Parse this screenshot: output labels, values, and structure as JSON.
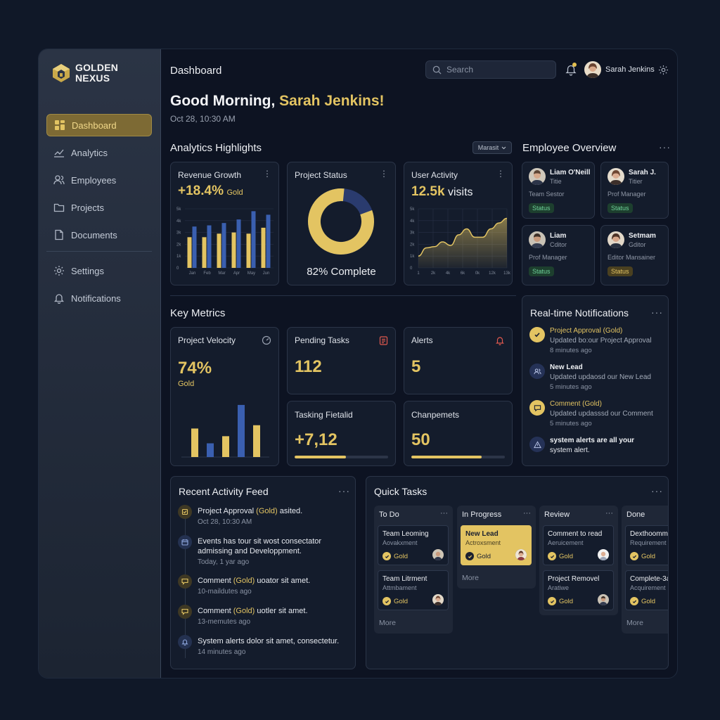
{
  "brand": {
    "line1": "GOLDEN",
    "line2": "NEXUS"
  },
  "nav": [
    {
      "label": "Dashboard",
      "icon": "grid-icon",
      "active": true
    },
    {
      "label": "Analytics",
      "icon": "chart-line-icon"
    },
    {
      "label": "Employees",
      "icon": "users-icon"
    },
    {
      "label": "Projects",
      "icon": "folder-icon"
    },
    {
      "label": "Documents",
      "icon": "document-icon"
    },
    {
      "label": "Settings",
      "icon": "gear-icon"
    },
    {
      "label": "Notifications",
      "icon": "bell-icon"
    }
  ],
  "topbar": {
    "title": "Dashboard",
    "search_placeholder": "Search",
    "user_name": "Sarah Jenkins"
  },
  "greeting": {
    "prefix": "Good Morning, ",
    "name": "Sarah Jenkins!",
    "date": "Oct 28, 10:30 AM"
  },
  "analytics": {
    "title": "Analytics Highlights",
    "select_label": "Marasit",
    "revenue": {
      "label": "Revenue Growth",
      "value": "+18.4%",
      "suffix": "Gold",
      "chart_data": {
        "type": "bar",
        "categories": [
          "Jan",
          "Feb",
          "Mar",
          "Apr",
          "May",
          "Jun"
        ],
        "y_ticks": [
          "0",
          "1k",
          "2k",
          "3k",
          "4k",
          "5k"
        ],
        "ylim": [
          0,
          5
        ],
        "series": [
          {
            "values": [
              2.6,
              2.6,
              2.9,
              3.0,
              2.9,
              3.4
            ],
            "color": "#e3c462"
          },
          {
            "values": [
              3.5,
              3.6,
              3.8,
              4.1,
              4.8,
              4.5
            ],
            "color": "#3a5fb0"
          }
        ]
      }
    },
    "project_status": {
      "label": "Project Status",
      "caption": "82% Complete",
      "percent": 82
    },
    "user_activity": {
      "label": "User Activity",
      "value": "12.5k",
      "unit": "visits",
      "chart_data": {
        "type": "area",
        "x_ticks": [
          "1",
          "2k",
          "4k",
          "6k",
          "0k",
          "12k",
          "13k"
        ],
        "y_ticks": [
          "0",
          "1k",
          "2k",
          "3k",
          "4k",
          "5k"
        ],
        "ylim": [
          0,
          5
        ],
        "values": [
          1.0,
          1.7,
          1.8,
          2.2,
          1.9,
          2.8,
          3.3,
          2.6,
          2.6,
          3.3,
          3.8,
          4.2
        ]
      }
    }
  },
  "employees": {
    "title": "Employee Overview",
    "items": [
      {
        "name": "Liam O'Neill",
        "sub": "Titie",
        "role": "Team Sestor",
        "status": "Status",
        "status_tone": "green"
      },
      {
        "name": "Sarah J.",
        "sub": "Titier",
        "role": "Prof Manager",
        "status": "Status",
        "status_tone": "green"
      },
      {
        "name": "Liam",
        "sub": "Cditor",
        "role": "Prof Manager",
        "status": "Status",
        "status_tone": "green"
      },
      {
        "name": "Setmam",
        "sub": "Gditor",
        "role": "Editor Mansainer",
        "status": "Status",
        "status_tone": "gold"
      }
    ]
  },
  "key_metrics": {
    "title": "Key Metrics",
    "velocity": {
      "label": "Project Velocity",
      "value": "74%",
      "suffix": "Gold",
      "chart_data": {
        "type": "bar",
        "values": [
          0.52,
          0.25,
          0.38,
          0.95,
          0.58
        ],
        "colors": [
          "#e3c462",
          "#3a5fb0",
          "#e3c462",
          "#3a5fb0",
          "#e3c462"
        ]
      }
    },
    "pending": {
      "label": "Pending Tasks",
      "value": "112"
    },
    "alerts": {
      "label": "Alerts",
      "value": "5"
    },
    "tasking": {
      "label": "Tasking Fietalid",
      "value": "+7,12",
      "progress": 0.55
    },
    "changes": {
      "label": "Chanpemets",
      "value": "50",
      "progress": 0.75
    }
  },
  "notifications": {
    "title": "Real-time Notifications",
    "items": [
      {
        "title": "Project Approval (Gold)",
        "desc": "Updated bo:our Project Approval",
        "time": "8 minutes ago",
        "tone": "gold"
      },
      {
        "title": "New Lead",
        "desc": "Updated updaosd our New Lead",
        "time": "5 minutes ago",
        "tone": "blue"
      },
      {
        "title": "Comment (Gold)",
        "desc": "Updated updasssd our Comment",
        "time": "5 minutes ago",
        "tone": "gold"
      },
      {
        "title": "system alerts are all your",
        "desc": "system alert.",
        "time": "",
        "tone": "blue"
      }
    ]
  },
  "activity": {
    "title": "Recent Activity Feed",
    "items": [
      {
        "pre": "Project Approval ",
        "gold": "(Gold)",
        "post": " asited.",
        "line2": "",
        "time": "Oct 28, 10:30 AM"
      },
      {
        "pre": "Events has tour sit wost consectator",
        "gold": "",
        "post": "",
        "line2": "admissing and Developpment.",
        "time": "Today, 1 yar ago"
      },
      {
        "pre": "Comment ",
        "gold": "(Gold)",
        "post": " uoator sit amet.",
        "line2": "",
        "time": "10-maildutes ago"
      },
      {
        "pre": "Comment ",
        "gold": "(Gold)",
        "post": " uotler sit amet.",
        "line2": "",
        "time": "13-memutes ago"
      },
      {
        "pre": "System alerts dolor sit amet, consectetur.",
        "gold": "",
        "post": "",
        "line2": "",
        "time": "14 minutes ago"
      }
    ]
  },
  "quick_tasks": {
    "title": "Quick Tasks",
    "columns": [
      {
        "title": "To Do",
        "more": "More",
        "tasks": [
          {
            "title": "Team Leoming",
            "sub": "Aovakxment",
            "badge": "Gold"
          },
          {
            "title": "Team Litrment",
            "sub": "Attmbament",
            "badge": "Gold"
          }
        ]
      },
      {
        "title": "In Progress",
        "more": "More",
        "tasks": [
          {
            "title": "New Lead",
            "sub": "Actroxsment",
            "badge": "Gold",
            "highlight": true
          }
        ]
      },
      {
        "title": "Review",
        "more": "",
        "tasks": [
          {
            "title": "Comment to read",
            "sub": "Aeruicement",
            "badge": "Gold"
          },
          {
            "title": "Project Removel",
            "sub": "Aratiwe",
            "badge": "Gold"
          }
        ]
      },
      {
        "title": "Done",
        "more": "More",
        "tasks": [
          {
            "title": "Dexthoommi",
            "sub": "Requirement",
            "badge": "Gold"
          },
          {
            "title": "Complete-3a",
            "sub": "Acquirement",
            "badge": "Gold"
          }
        ]
      }
    ]
  },
  "colors": {
    "gold": "#e3c462",
    "blue": "#3a5fb0",
    "bg": "#0d1322",
    "card": "#141c2c"
  }
}
